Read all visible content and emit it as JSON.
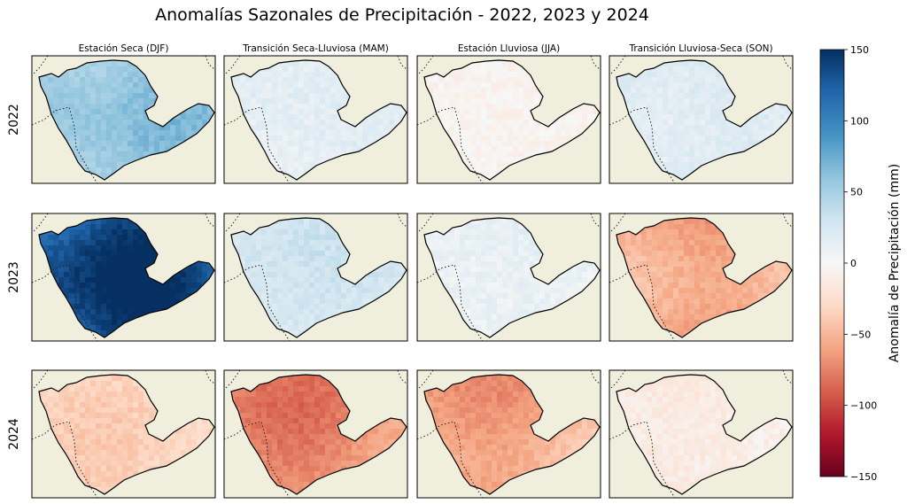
{
  "chart_data": {
    "type": "heatmap",
    "title": "Anomalías Sazonales de Precipitación - 2022, 2023 y 2024",
    "columns": [
      "Estación Seca (DJF)",
      "Transición Seca-Lluviosa (MAM)",
      "Estación Lluviosa (JJA)",
      "Transición Lluviosa-Seca (SON)"
    ],
    "rows": [
      "2022",
      "2023",
      "2024"
    ],
    "approx_mean_anomaly_mm": [
      [
        55,
        15,
        -5,
        20
      ],
      [
        125,
        25,
        10,
        -55
      ],
      [
        -30,
        -65,
        -55,
        -12
      ]
    ],
    "colorbar": {
      "label": "Anomalía de Precipitación (mm)",
      "min": -150,
      "max": 150,
      "ticks": [
        "150",
        "100",
        "50",
        "0",
        "−50",
        "−100",
        "−150"
      ],
      "colormap": "RdBu",
      "colors": [
        "#67001f",
        "#b2182b",
        "#d6604d",
        "#f4a582",
        "#fddbc7",
        "#f7f7f7",
        "#d1e5f0",
        "#92c5de",
        "#4393c3",
        "#2166ac",
        "#053061"
      ]
    },
    "map_background": "#f0eedc",
    "grid": false
  }
}
